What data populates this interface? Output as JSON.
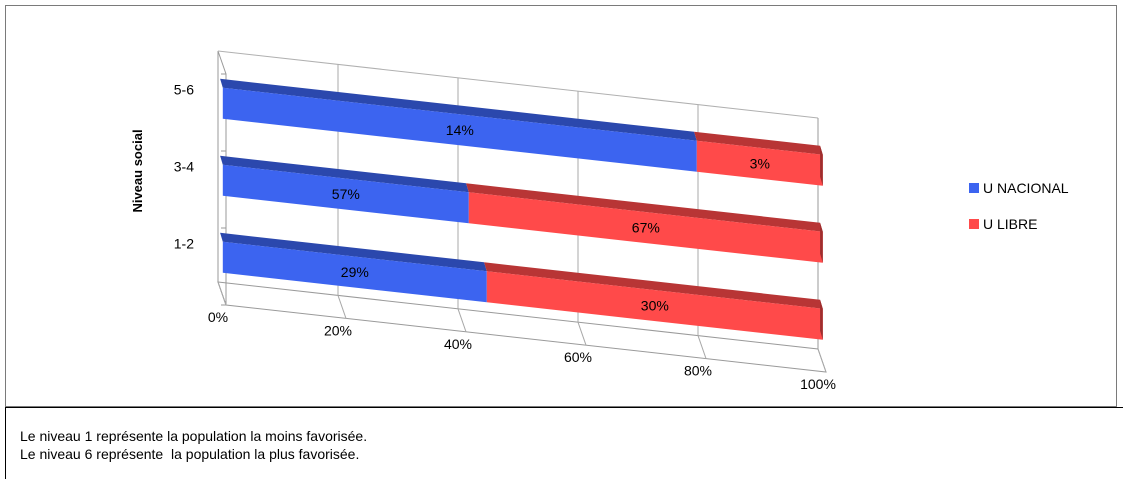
{
  "chart_data": {
    "type": "bar",
    "orientation": "horizontal",
    "stacked": "percent",
    "style": "3d",
    "ylabel": "Niveau social",
    "categories": [
      "1-2",
      "3-4",
      "5-6"
    ],
    "x_ticks": [
      "0%",
      "20%",
      "40%",
      "60%",
      "80%",
      "100%"
    ],
    "xlim": [
      0,
      100
    ],
    "series": [
      {
        "name": "U NACIONAL",
        "color": "#3c64f0",
        "values": [
          29,
          57,
          14
        ],
        "labels": [
          "29%",
          "57%",
          "14%"
        ],
        "share_percent": [
          44,
          41,
          79
        ]
      },
      {
        "name": "U LIBRE",
        "color": "#ff4a4a",
        "values": [
          30,
          67,
          3
        ],
        "labels": [
          "30%",
          "67%",
          "3%"
        ],
        "share_percent": [
          56,
          59,
          21
        ]
      }
    ],
    "legend": "right",
    "grid": true
  },
  "notes": [
    "Le niveau 1 représente la population la moins favorisée.",
    "Le niveau 6 représente  la population la plus favorisée."
  ]
}
